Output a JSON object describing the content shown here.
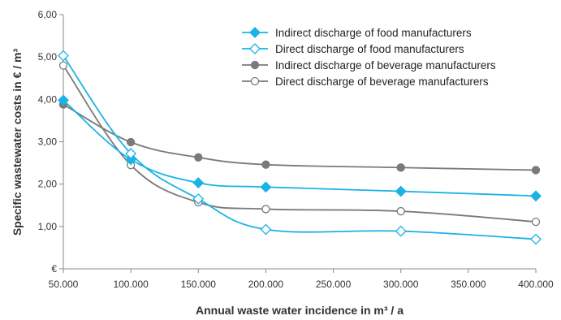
{
  "chart_data": {
    "type": "line",
    "x_categories": [
      "50.000",
      "100.000",
      "150.000",
      "200.000",
      "250.000",
      "300.000",
      "350.000",
      "400.000"
    ],
    "x_values": [
      50000,
      100000,
      150000,
      200000,
      250000,
      300000,
      350000,
      400000
    ],
    "y_ticks": [
      "€",
      "1,00",
      "2,00",
      "3,00",
      "4,00",
      "5,00",
      "6,00"
    ],
    "ylim": [
      0,
      6
    ],
    "xlabel": "Annual waste water incidence in m³ / a",
    "ylabel": "Specific wastewater costs in € / m³",
    "grid": false,
    "legend_position": "top-right",
    "series": [
      {
        "name": "Indirect discharge of food manufacturers",
        "color": "#1ab3e6",
        "marker": "filled-diamond",
        "points": [
          {
            "x": 50000,
            "y": 3.98
          },
          {
            "x": 100000,
            "y": 2.58
          },
          {
            "x": 150000,
            "y": 2.03
          },
          {
            "x": 200000,
            "y": 1.93
          },
          {
            "x": 300000,
            "y": 1.83
          },
          {
            "x": 400000,
            "y": 1.72
          }
        ]
      },
      {
        "name": "Direct discharge of food manufacturers",
        "color": "#1ab3e6",
        "marker": "open-diamond",
        "points": [
          {
            "x": 50000,
            "y": 5.03
          },
          {
            "x": 100000,
            "y": 2.72
          },
          {
            "x": 150000,
            "y": 1.65
          },
          {
            "x": 200000,
            "y": 0.93
          },
          {
            "x": 300000,
            "y": 0.89
          },
          {
            "x": 400000,
            "y": 0.7
          }
        ]
      },
      {
        "name": "Indirect discharge of beverage manufacturers",
        "color": "#7a7a7a",
        "marker": "filled-circle",
        "points": [
          {
            "x": 50000,
            "y": 3.88
          },
          {
            "x": 100000,
            "y": 2.99
          },
          {
            "x": 150000,
            "y": 2.63
          },
          {
            "x": 200000,
            "y": 2.46
          },
          {
            "x": 300000,
            "y": 2.39
          },
          {
            "x": 400000,
            "y": 2.33
          }
        ]
      },
      {
        "name": "Direct discharge of beverage manufacturers",
        "color": "#7a7a7a",
        "marker": "open-circle",
        "points": [
          {
            "x": 50000,
            "y": 4.8
          },
          {
            "x": 100000,
            "y": 2.45
          },
          {
            "x": 150000,
            "y": 1.57
          },
          {
            "x": 200000,
            "y": 1.41
          },
          {
            "x": 300000,
            "y": 1.36
          },
          {
            "x": 400000,
            "y": 1.11
          }
        ]
      }
    ]
  }
}
